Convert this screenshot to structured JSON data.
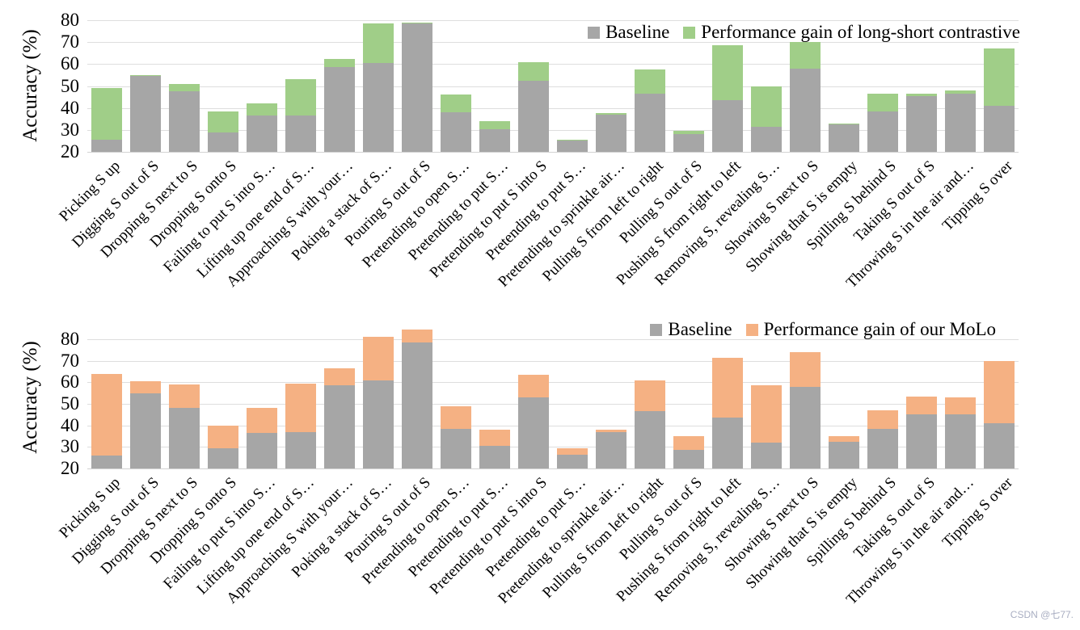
{
  "watermark": {
    "text": "CSDN @七77.",
    "color": "#a9aec2"
  },
  "palette": {
    "baseline_gray": "#a6a6a6",
    "gain_green": "#a0ce88",
    "gain_orange": "#f5b183",
    "gridline": "#dedede"
  },
  "chart_data": [
    {
      "type": "bar",
      "stacked": true,
      "title": "",
      "ylabel": "Accuracy (%)",
      "xlabel": "",
      "ylim": [
        20,
        80
      ],
      "yticks": [
        20,
        30,
        40,
        50,
        60,
        70,
        80
      ],
      "grid": true,
      "legend_position": "top-right-inside",
      "categories": [
        "Picking S up",
        "Digging S out of S",
        "Dropping S next to S",
        "Dropping S onto S",
        "Failing to put S into S…",
        "Lifting up one end of S…",
        "Approaching S with your…",
        "Poking a stack of S…",
        "Pouring S out of S",
        "Pretending to open S…",
        "Pretending to put S…",
        "Pretending to put S into S",
        "Pretending to put S…",
        "Pretending to sprinkle air…",
        "Pulling S from left to right",
        "Pulling S out of S",
        "Pushing S from right to left",
        "Removing S, revealing S…",
        "Showing S next to S",
        "Showing that S is empty",
        "Spilling S behind S",
        "Taking S out of S",
        "Throwing S in the air and…",
        "Tipping S over"
      ],
      "series": [
        {
          "name": "Baseline",
          "color": "#a6a6a6",
          "values": [
            25.5,
            54.5,
            47.5,
            29,
            36.5,
            36.5,
            58.5,
            60.5,
            78.5,
            38,
            30.5,
            52.5,
            25,
            37,
            46.5,
            28,
            43.5,
            31.5,
            58,
            32.5,
            38.5,
            45.5,
            46.5,
            41
          ]
        },
        {
          "name": "Performance gain of long-short contrastive",
          "color": "#a0ce88",
          "values": [
            23.5,
            0.5,
            3.5,
            9.5,
            5.5,
            16.5,
            4,
            18,
            0.5,
            8,
            3.5,
            8.5,
            0.5,
            0.5,
            11,
            1.5,
            25,
            18.5,
            12,
            0.5,
            8,
            1,
            1.5,
            26
          ]
        }
      ]
    },
    {
      "type": "bar",
      "stacked": true,
      "title": "",
      "ylabel": "Accuracy (%)",
      "xlabel": "",
      "ylim": [
        20,
        86
      ],
      "yticks": [
        20,
        30,
        40,
        50,
        60,
        70,
        80
      ],
      "grid": true,
      "legend_position": "top-right-inside",
      "categories": [
        "Picking S up",
        "Digging S out of S",
        "Dropping S next to S",
        "Dropping S onto S",
        "Failing to put S into S…",
        "Lifting up one end of S…",
        "Approaching S with your…",
        "Poking a stack of S…",
        "Pouring S out of S",
        "Pretending to open S…",
        "Pretending to put S…",
        "Pretending to put S into S",
        "Pretending to put S…",
        "Pretending to sprinkle air…",
        "Pulling S from left to right",
        "Pulling S out of S",
        "Pushing S from right to left",
        "Removing S, revealing S…",
        "Showing S next to S",
        "Showing that S is empty",
        "Spilling S behind S",
        "Taking S out of S",
        "Throwing S in the air and…",
        "Tipping S over"
      ],
      "series": [
        {
          "name": "Baseline",
          "color": "#a6a6a6",
          "values": [
            26,
            55,
            48,
            29.5,
            36.5,
            37,
            58.5,
            61,
            78.5,
            38.5,
            30.5,
            53,
            26.5,
            37,
            46.5,
            28.5,
            43.5,
            32,
            58,
            32.5,
            38.5,
            45,
            45,
            41
          ]
        },
        {
          "name": "Performance gain of our MoLo",
          "color": "#f5b183",
          "values": [
            38,
            5.5,
            11,
            10.5,
            11.5,
            22.5,
            8,
            20,
            6,
            10.5,
            7.5,
            10.5,
            3,
            1,
            14.5,
            6.5,
            28,
            26.5,
            16,
            2.5,
            8.5,
            8.5,
            8,
            29
          ]
        }
      ]
    }
  ]
}
